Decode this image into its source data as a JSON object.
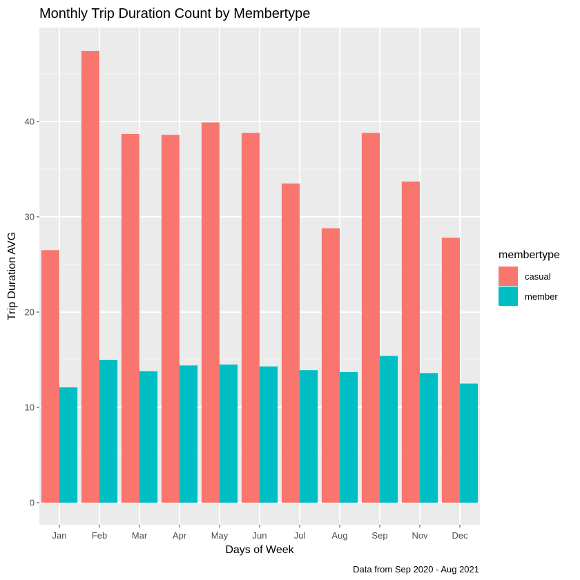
{
  "chart_data": {
    "type": "bar",
    "title": "Monthly Trip Duration Count by Membertype",
    "xlabel": "Days of Week",
    "ylabel": "Trip Duration AVG",
    "caption": "Data from Sep 2020 - Aug 2021",
    "legend_title": "membertype",
    "legend_position": "right",
    "grid": true,
    "ylim": [
      0,
      50
    ],
    "yticks": [
      0,
      10,
      20,
      30,
      40
    ],
    "categories": [
      "Jan",
      "Feb",
      "Mar",
      "Apr",
      "May",
      "Jun",
      "Jul",
      "Aug",
      "Sep",
      "Nov",
      "Dec"
    ],
    "series": [
      {
        "name": "casual",
        "color": "#F8766D",
        "values": [
          26.5,
          47.4,
          38.7,
          38.6,
          39.9,
          38.8,
          33.5,
          28.8,
          38.8,
          33.7,
          27.8
        ]
      },
      {
        "name": "member",
        "color": "#00BFC4",
        "values": [
          12.1,
          15.0,
          13.8,
          14.4,
          14.5,
          14.3,
          13.9,
          13.7,
          15.4,
          13.6,
          12.5
        ]
      }
    ]
  }
}
